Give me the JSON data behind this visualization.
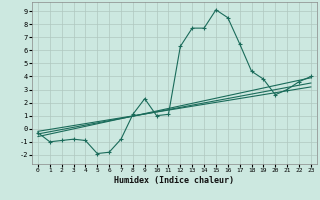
{
  "xlabel": "Humidex (Indice chaleur)",
  "bg_color": "#cce8e0",
  "grid_color": "#b0c8c0",
  "line_color": "#1a6b5a",
  "xlim": [
    -0.5,
    23.5
  ],
  "ylim": [
    -2.7,
    9.7
  ],
  "xticks": [
    0,
    1,
    2,
    3,
    4,
    5,
    6,
    7,
    8,
    9,
    10,
    11,
    12,
    13,
    14,
    15,
    16,
    17,
    18,
    19,
    20,
    21,
    22,
    23
  ],
  "yticks": [
    -2,
    -1,
    0,
    1,
    2,
    3,
    4,
    5,
    6,
    7,
    8,
    9
  ],
  "curve1_x": [
    0,
    1,
    2,
    3,
    4,
    5,
    6,
    7,
    8,
    9,
    10,
    11,
    12,
    13,
    14,
    15,
    16,
    17,
    18,
    19,
    20,
    21,
    22,
    23
  ],
  "curve1_y": [
    -0.3,
    -1.0,
    -0.9,
    -0.8,
    -0.9,
    -1.9,
    -1.8,
    -0.8,
    1.1,
    2.3,
    1.0,
    1.1,
    6.3,
    7.7,
    7.7,
    9.1,
    8.5,
    6.5,
    4.4,
    3.8,
    2.6,
    3.0,
    3.6,
    4.0
  ],
  "line2_x": [
    0,
    23
  ],
  "line2_y": [
    -0.6,
    3.9
  ],
  "line3_x": [
    0,
    23
  ],
  "line3_y": [
    -0.4,
    3.5
  ],
  "line4_x": [
    0,
    23
  ],
  "line4_y": [
    -0.2,
    3.2
  ]
}
